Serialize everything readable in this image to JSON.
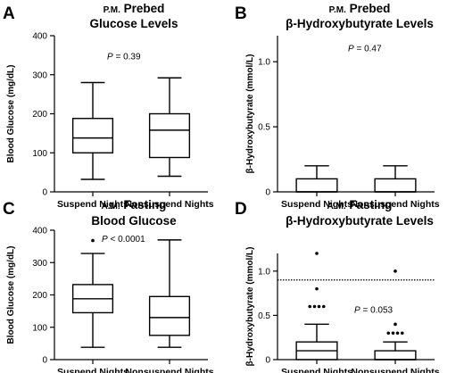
{
  "chart_data": [
    {
      "type": "box",
      "panel": "A",
      "title_prefix": "P.M.",
      "title_rest": "Prebed",
      "title_line2": "Glucose Levels",
      "ylabel": "Blood Glucose (mg/dL)",
      "ylim": [
        0,
        400
      ],
      "yticks": [
        "0",
        "100",
        "200",
        "300",
        "400"
      ],
      "categories": [
        "Suspend Nights",
        "Nonsuspend Nights"
      ],
      "boxes": [
        {
          "whisker_low": 32,
          "q1": 100,
          "median": 138,
          "q3": 188,
          "whisker_high": 280,
          "outliers": []
        },
        {
          "whisker_low": 40,
          "q1": 88,
          "median": 158,
          "q3": 200,
          "whisker_high": 292,
          "outliers": []
        }
      ],
      "p_label": "P",
      "p_text": " = 0.39",
      "reference_line": null
    },
    {
      "type": "box",
      "panel": "B",
      "title_prefix": "P.M.",
      "title_rest": "Prebed",
      "title_line2": "β-Hydroxybutyrate Levels",
      "ylabel": "β-Hydroxybutyrate (mmol/L)",
      "ylim": [
        0,
        1.2
      ],
      "yticks": [
        "0",
        "0.5",
        "1.0"
      ],
      "categories": [
        "Suspend Nights",
        "Nonsuspend Nights"
      ],
      "boxes": [
        {
          "whisker_low": 0,
          "q1": 0,
          "median": 0,
          "q3": 0.1,
          "whisker_high": 0.2,
          "outliers": []
        },
        {
          "whisker_low": 0,
          "q1": 0,
          "median": 0,
          "q3": 0.1,
          "whisker_high": 0.2,
          "outliers": []
        }
      ],
      "p_label": "P",
      "p_text": " = 0.47",
      "reference_line": null
    },
    {
      "type": "box",
      "panel": "C",
      "title_prefix": "A.M.",
      "title_rest": "Fasting",
      "title_line2": "Blood Glucose",
      "ylabel": "Blood Glucose (mg/dL)",
      "ylim": [
        0,
        400
      ],
      "yticks": [
        "0",
        "100",
        "200",
        "300",
        "400"
      ],
      "categories": [
        "Suspend Nights",
        "Nonsuspend Nights"
      ],
      "boxes": [
        {
          "whisker_low": 38,
          "q1": 145,
          "median": 188,
          "q3": 232,
          "whisker_high": 328,
          "outliers": [
            [
              0,
              368
            ]
          ]
        },
        {
          "whisker_low": 38,
          "q1": 75,
          "median": 130,
          "q3": 195,
          "whisker_high": 370,
          "outliers": []
        }
      ],
      "p_label": "P",
      "p_text": " < 0.0001",
      "reference_line": null
    },
    {
      "type": "box",
      "panel": "D",
      "title_prefix": "A.M.",
      "title_rest": "Fasting",
      "title_line2": "β-Hydroxybutyrate Levels",
      "ylabel": "β-Hydroxybutyrate (mmol/L)",
      "ylim": [
        0,
        1.2
      ],
      "yticks": [
        "0",
        "0.5",
        "1.0"
      ],
      "categories": [
        "Suspend Nights",
        "Nonsuspend Nights"
      ],
      "boxes": [
        {
          "whisker_low": 0,
          "q1": 0,
          "median": 0.1,
          "q3": 0.2,
          "whisker_high": 0.4,
          "outliers": [
            [
              -0.04,
              0.6
            ],
            [
              -0.013,
              0.6
            ],
            [
              0.013,
              0.6
            ],
            [
              0.04,
              0.6
            ],
            [
              0,
              0.8
            ],
            [
              0,
              1.2
            ]
          ]
        },
        {
          "whisker_low": 0,
          "q1": 0,
          "median": 0,
          "q3": 0.1,
          "whisker_high": 0.2,
          "outliers": [
            [
              -0.04,
              0.3
            ],
            [
              -0.013,
              0.3
            ],
            [
              0.013,
              0.3
            ],
            [
              0.04,
              0.3
            ],
            [
              0,
              0.4
            ],
            [
              0,
              1.0
            ]
          ]
        }
      ],
      "p_label": "P",
      "p_text": " = 0.053",
      "reference_line": 0.9
    }
  ]
}
